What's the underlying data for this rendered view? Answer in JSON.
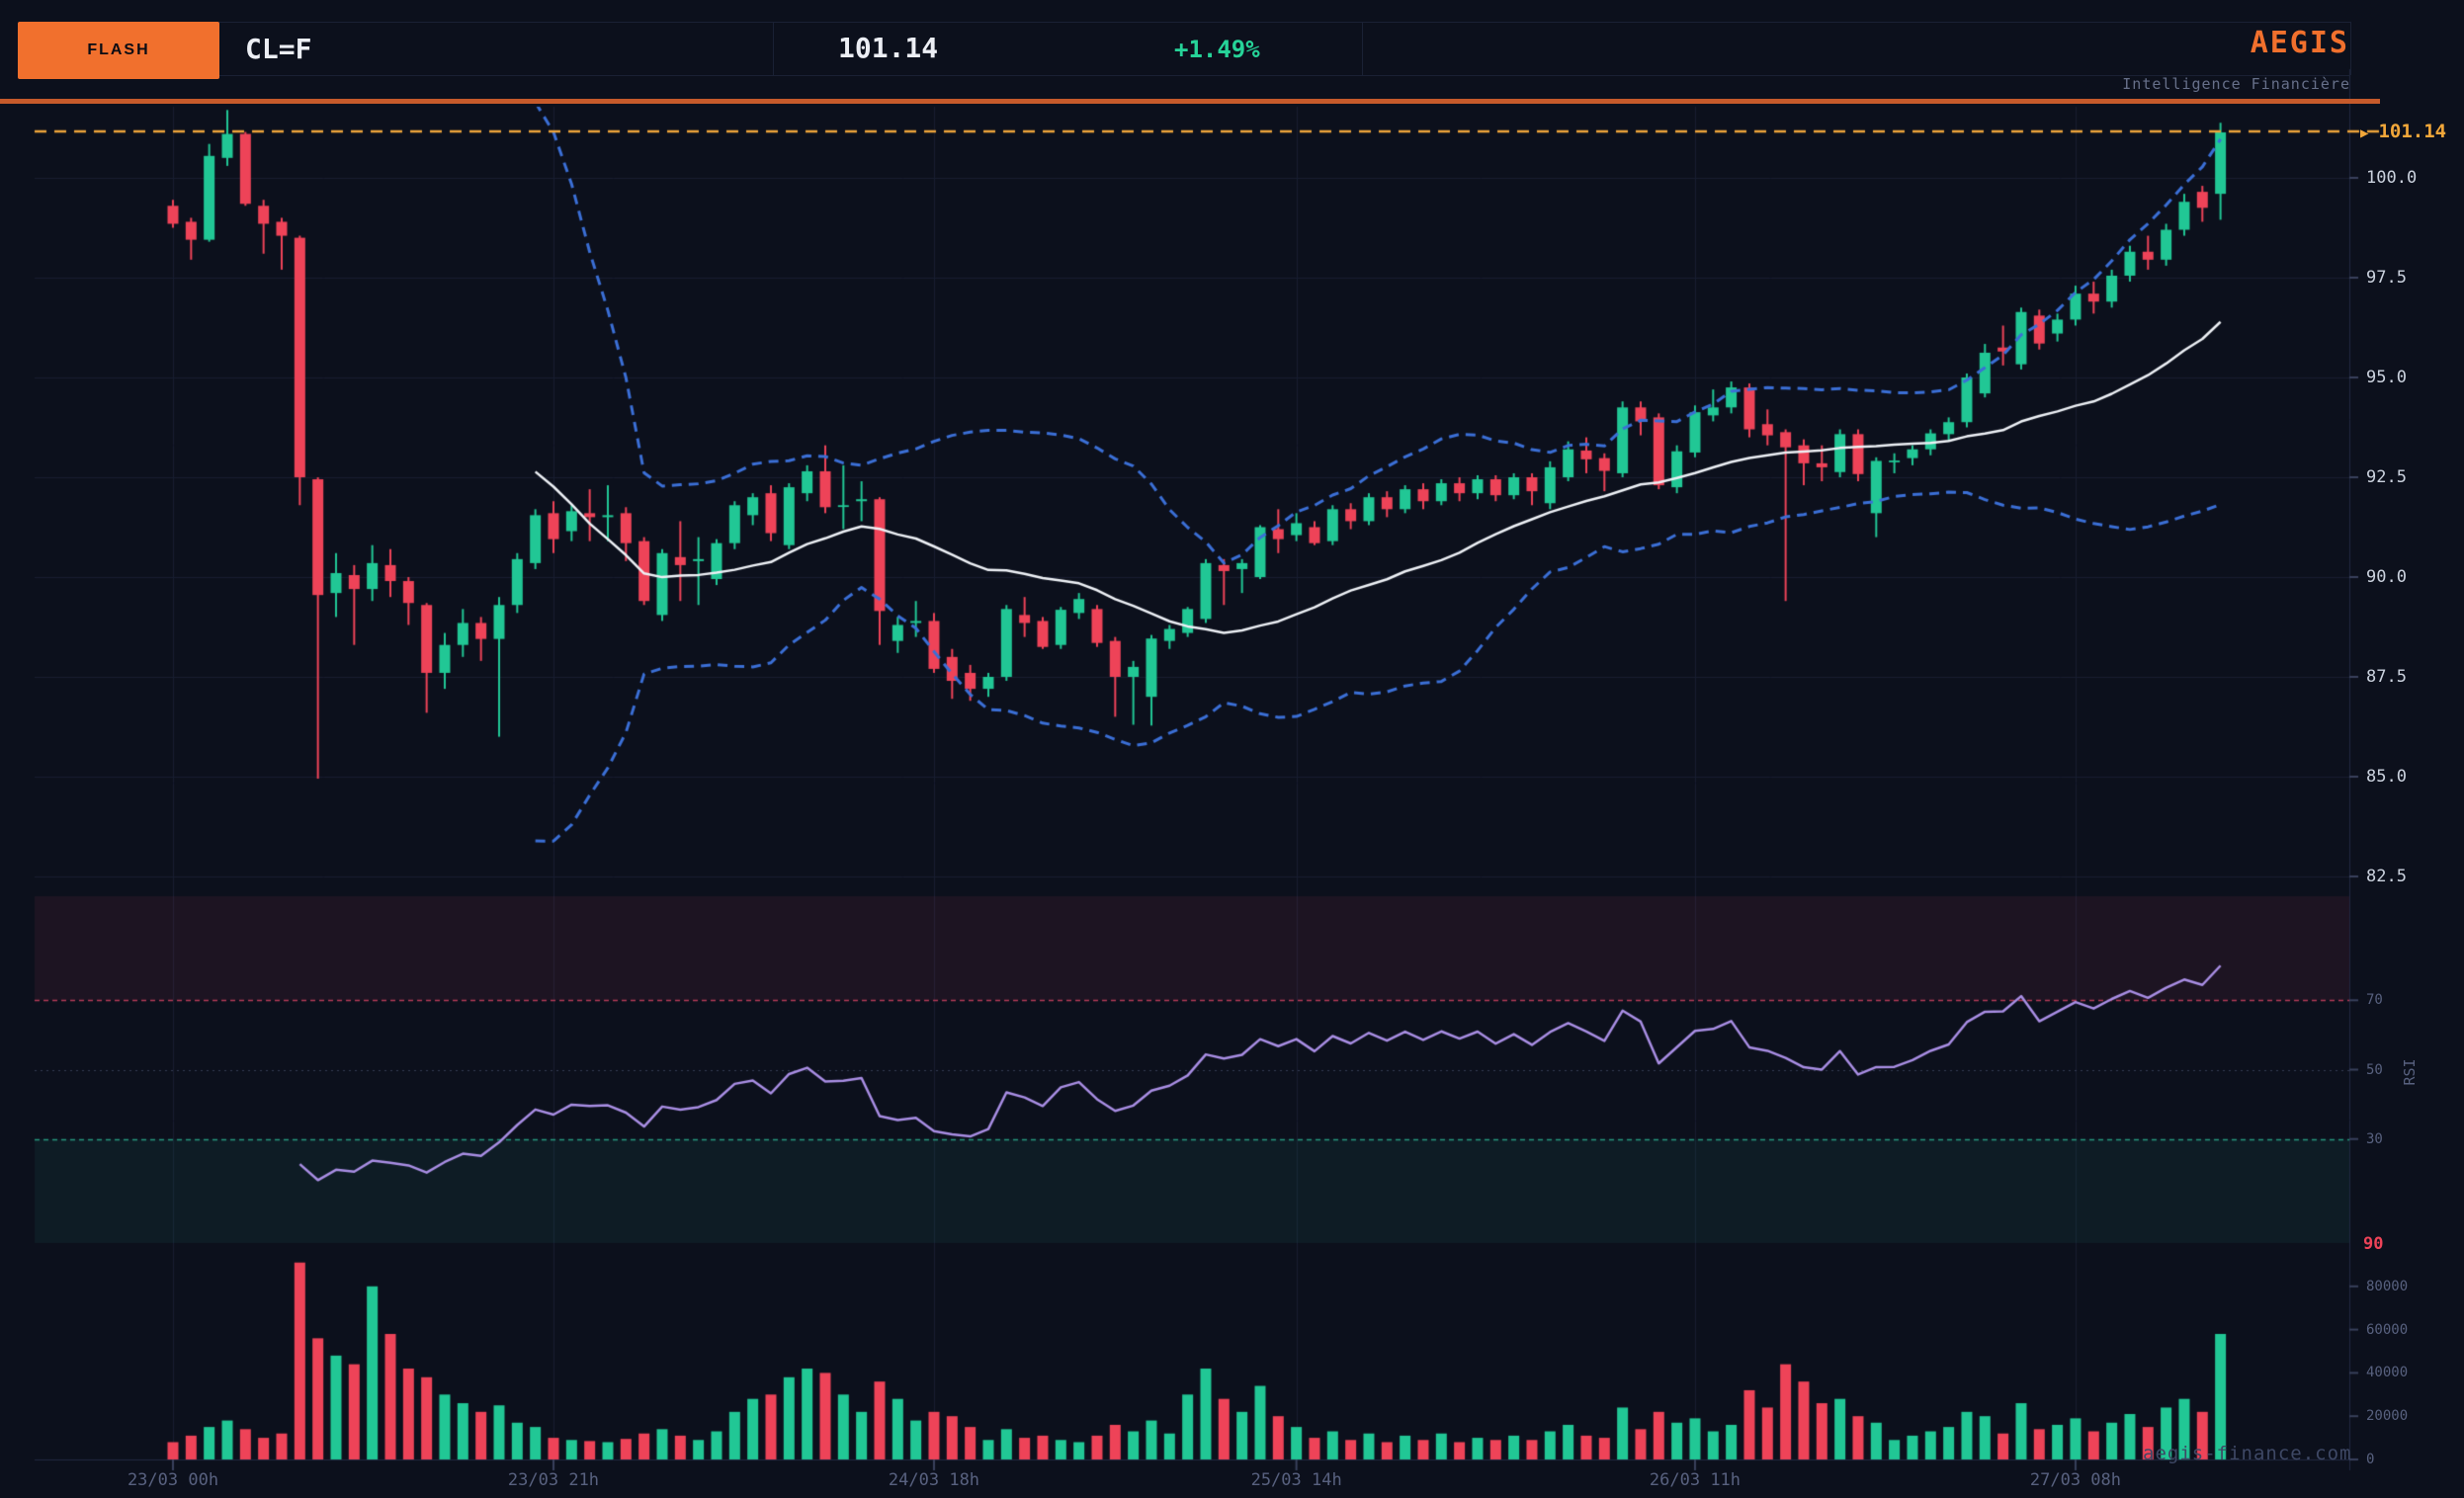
{
  "header": {
    "flash_label": "FLASH",
    "ticker": "CL=F",
    "price": "101.14",
    "change": "+1.49%",
    "brand": "AEGIS",
    "brand_subtitle": "Intelligence Financière"
  },
  "price_line": {
    "arrow": "▶",
    "value": "101.14"
  },
  "watermark": "aegis-finance.com",
  "colors": {
    "background": "#0c101c",
    "accent_orange": "#f1702d",
    "divider_orange": "#c65a2b",
    "candle_green": "#21c795",
    "candle_red": "#ee4358",
    "bollinger_blue": "#3b6fd6",
    "ma_white": "#eef1f6",
    "rsi_purple": "#a98ee4",
    "amber_line": "#eda43b",
    "amber_label": "#f2a73a",
    "change_green": "#26d398",
    "overbought_red": "#b43a57",
    "oversold_teal": "#27967d",
    "axis_label": "#ccd3df",
    "axis_dim": "#58617f",
    "grid": "#181d30"
  },
  "chart_data": {
    "type": "candlestick",
    "symbol": "CL=F",
    "last_price": 101.14,
    "change_pct": "+1.49%",
    "indicators": [
      "SMA20",
      "BollingerBands(20,2)",
      "RSI(14)",
      "Volume"
    ],
    "legend_position": "none",
    "grid": true,
    "price_axis": {
      "ticks": [
        100.0,
        97.5,
        95.0,
        92.5,
        90.0,
        87.5,
        85.0,
        82.5
      ],
      "current_price_line": 101.14
    },
    "rsi_axis": {
      "label": "RSI",
      "ticks": [
        70,
        50,
        30
      ],
      "overbought": 70,
      "oversold": 30,
      "midline": 50,
      "current_tag": "90"
    },
    "volume_axis": {
      "ticks": [
        80000,
        60000,
        40000,
        20000,
        0
      ]
    },
    "x_ticks": [
      {
        "index": 0,
        "label": "23/03 00h"
      },
      {
        "index": 21,
        "label": "23/03 21h"
      },
      {
        "index": 42,
        "label": "24/03 18h"
      },
      {
        "index": 62,
        "label": "25/03 14h"
      },
      {
        "index": 84,
        "label": "26/03 11h"
      },
      {
        "index": 105,
        "label": "27/03 08h"
      }
    ],
    "candles": [
      [
        99.3,
        99.45,
        98.75,
        98.85,
        8000
      ],
      [
        98.9,
        99.0,
        97.95,
        98.45,
        11000
      ],
      [
        98.45,
        100.85,
        98.4,
        100.55,
        15000
      ],
      [
        100.5,
        101.7,
        100.3,
        101.1,
        18000
      ],
      [
        101.1,
        101.15,
        99.3,
        99.35,
        14000
      ],
      [
        99.3,
        99.45,
        98.1,
        98.85,
        10000
      ],
      [
        98.9,
        99.0,
        97.7,
        98.55,
        12000
      ],
      [
        98.5,
        98.55,
        91.8,
        92.5,
        91000
      ],
      [
        92.45,
        92.5,
        84.95,
        89.55,
        56000
      ],
      [
        89.6,
        90.6,
        89.0,
        90.1,
        48000
      ],
      [
        90.05,
        90.3,
        88.3,
        89.7,
        44000
      ],
      [
        89.7,
        90.8,
        89.4,
        90.35,
        80000
      ],
      [
        90.3,
        90.7,
        89.5,
        89.9,
        58000
      ],
      [
        89.9,
        90.0,
        88.8,
        89.35,
        42000
      ],
      [
        89.3,
        89.35,
        86.6,
        87.6,
        38000
      ],
      [
        87.6,
        88.6,
        87.2,
        88.3,
        30000
      ],
      [
        88.3,
        89.2,
        88.0,
        88.85,
        26000
      ],
      [
        88.85,
        89.0,
        87.9,
        88.45,
        22000
      ],
      [
        88.45,
        89.5,
        86.0,
        89.3,
        25000
      ],
      [
        89.3,
        90.6,
        89.1,
        90.45,
        17000
      ],
      [
        90.35,
        91.7,
        90.2,
        91.55,
        15000
      ],
      [
        91.6,
        91.9,
        90.6,
        90.95,
        10000
      ],
      [
        91.15,
        91.8,
        90.9,
        91.65,
        9000
      ],
      [
        91.6,
        92.2,
        90.9,
        91.5,
        8500
      ],
      [
        91.5,
        92.3,
        90.9,
        91.55,
        8000
      ],
      [
        91.6,
        91.75,
        90.4,
        90.85,
        9500
      ],
      [
        90.9,
        91.0,
        89.3,
        89.4,
        12000
      ],
      [
        89.05,
        90.7,
        88.9,
        90.6,
        14000
      ],
      [
        90.5,
        91.4,
        89.4,
        90.3,
        11000
      ],
      [
        90.4,
        91.0,
        89.3,
        90.45,
        9000
      ],
      [
        89.95,
        90.95,
        89.8,
        90.85,
        13000
      ],
      [
        90.85,
        91.9,
        90.7,
        91.8,
        22000
      ],
      [
        91.55,
        92.1,
        91.3,
        92.0,
        28000
      ],
      [
        92.1,
        92.3,
        90.9,
        91.1,
        30000
      ],
      [
        90.8,
        92.35,
        90.7,
        92.25,
        38000
      ],
      [
        92.1,
        92.8,
        91.9,
        92.65,
        42000
      ],
      [
        92.65,
        93.3,
        91.6,
        91.75,
        40000
      ],
      [
        91.8,
        92.8,
        91.2,
        91.8,
        30000
      ],
      [
        91.9,
        92.4,
        91.4,
        91.95,
        22000
      ],
      [
        91.95,
        92.0,
        88.3,
        89.15,
        36000
      ],
      [
        88.4,
        89.0,
        88.1,
        88.8,
        28000
      ],
      [
        88.85,
        89.4,
        88.5,
        88.9,
        18000
      ],
      [
        88.9,
        89.1,
        87.6,
        87.7,
        22000
      ],
      [
        88.0,
        88.2,
        86.95,
        87.4,
        20000
      ],
      [
        87.6,
        87.8,
        86.9,
        87.2,
        15000
      ],
      [
        87.2,
        87.6,
        87.0,
        87.5,
        9000
      ],
      [
        87.5,
        89.3,
        87.4,
        89.2,
        14000
      ],
      [
        89.05,
        89.5,
        88.5,
        88.85,
        10000
      ],
      [
        88.9,
        89.0,
        88.2,
        88.25,
        11000
      ],
      [
        88.3,
        89.25,
        88.2,
        89.18,
        9000
      ],
      [
        89.1,
        89.6,
        88.95,
        89.45,
        8000
      ],
      [
        89.2,
        89.3,
        88.25,
        88.35,
        11000
      ],
      [
        88.4,
        88.5,
        86.5,
        87.5,
        16000
      ],
      [
        87.5,
        87.9,
        86.3,
        87.75,
        13000
      ],
      [
        87.0,
        88.55,
        86.28,
        88.46,
        18000
      ],
      [
        88.4,
        88.8,
        88.2,
        88.7,
        12000
      ],
      [
        88.6,
        89.25,
        88.5,
        89.2,
        30000
      ],
      [
        88.95,
        90.45,
        88.85,
        90.35,
        42000
      ],
      [
        90.3,
        90.45,
        89.3,
        90.15,
        28000
      ],
      [
        90.2,
        90.45,
        89.6,
        90.35,
        22000
      ],
      [
        90.0,
        91.3,
        89.95,
        91.25,
        34000
      ],
      [
        91.2,
        91.7,
        90.6,
        90.95,
        20000
      ],
      [
        91.05,
        91.6,
        90.9,
        91.35,
        15000
      ],
      [
        91.25,
        91.4,
        90.8,
        90.85,
        10000
      ],
      [
        90.9,
        91.8,
        90.8,
        91.7,
        13000
      ],
      [
        91.7,
        91.85,
        91.2,
        91.4,
        9000
      ],
      [
        91.4,
        92.1,
        91.3,
        92.0,
        12000
      ],
      [
        92.0,
        92.15,
        91.5,
        91.7,
        8000
      ],
      [
        91.7,
        92.3,
        91.6,
        92.2,
        11000
      ],
      [
        92.2,
        92.35,
        91.7,
        91.9,
        9000
      ],
      [
        91.9,
        92.45,
        91.8,
        92.35,
        12000
      ],
      [
        92.35,
        92.5,
        91.9,
        92.1,
        8000
      ],
      [
        92.1,
        92.55,
        91.95,
        92.45,
        10000
      ],
      [
        92.45,
        92.55,
        91.9,
        92.05,
        9000
      ],
      [
        92.05,
        92.6,
        91.95,
        92.5,
        11000
      ],
      [
        92.5,
        92.6,
        91.8,
        92.15,
        9000
      ],
      [
        91.85,
        92.9,
        91.7,
        92.75,
        13000
      ],
      [
        92.5,
        93.4,
        92.4,
        93.2,
        16000
      ],
      [
        93.17,
        93.5,
        92.6,
        92.95,
        11000
      ],
      [
        92.98,
        93.1,
        92.15,
        92.66,
        10000
      ],
      [
        92.6,
        94.4,
        92.5,
        94.25,
        24000
      ],
      [
        94.25,
        94.4,
        93.55,
        93.9,
        14000
      ],
      [
        94.0,
        94.1,
        92.2,
        92.3,
        22000
      ],
      [
        92.25,
        93.3,
        92.1,
        93.15,
        17000
      ],
      [
        93.12,
        94.3,
        93.0,
        94.13,
        19000
      ],
      [
        94.05,
        94.7,
        93.9,
        94.25,
        13000
      ],
      [
        94.25,
        94.9,
        94.1,
        94.75,
        16000
      ],
      [
        94.75,
        94.85,
        93.5,
        93.7,
        32000
      ],
      [
        93.83,
        94.2,
        93.3,
        93.55,
        24000
      ],
      [
        93.63,
        93.7,
        89.4,
        93.25,
        44000
      ],
      [
        93.3,
        93.45,
        92.3,
        92.85,
        36000
      ],
      [
        92.85,
        93.3,
        92.4,
        92.75,
        26000
      ],
      [
        92.63,
        93.7,
        92.5,
        93.58,
        28000
      ],
      [
        93.58,
        93.7,
        92.4,
        92.58,
        20000
      ],
      [
        91.6,
        93.0,
        91.0,
        92.91,
        17000
      ],
      [
        92.9,
        93.1,
        92.6,
        92.92,
        9000
      ],
      [
        92.98,
        93.3,
        92.8,
        93.2,
        11000
      ],
      [
        93.2,
        93.7,
        93.05,
        93.6,
        13000
      ],
      [
        93.58,
        94.0,
        93.4,
        93.88,
        15000
      ],
      [
        93.88,
        95.1,
        93.75,
        95.0,
        22000
      ],
      [
        94.6,
        95.84,
        94.5,
        95.62,
        20000
      ],
      [
        95.75,
        96.3,
        95.3,
        95.65,
        12000
      ],
      [
        95.33,
        96.75,
        95.2,
        96.64,
        26000
      ],
      [
        96.55,
        96.7,
        95.7,
        95.85,
        14000
      ],
      [
        96.1,
        96.6,
        95.9,
        96.45,
        16000
      ],
      [
        96.45,
        97.3,
        96.3,
        97.1,
        19000
      ],
      [
        97.1,
        97.4,
        96.6,
        96.9,
        13000
      ],
      [
        96.9,
        97.7,
        96.75,
        97.55,
        17000
      ],
      [
        97.55,
        98.3,
        97.4,
        98.15,
        21000
      ],
      [
        98.15,
        98.55,
        97.7,
        97.95,
        15000
      ],
      [
        97.95,
        98.85,
        97.8,
        98.7,
        24000
      ],
      [
        98.7,
        99.6,
        98.55,
        99.4,
        28000
      ],
      [
        99.65,
        99.8,
        98.9,
        99.25,
        22000
      ],
      [
        99.6,
        101.38,
        98.95,
        101.14,
        58000
      ]
    ]
  }
}
